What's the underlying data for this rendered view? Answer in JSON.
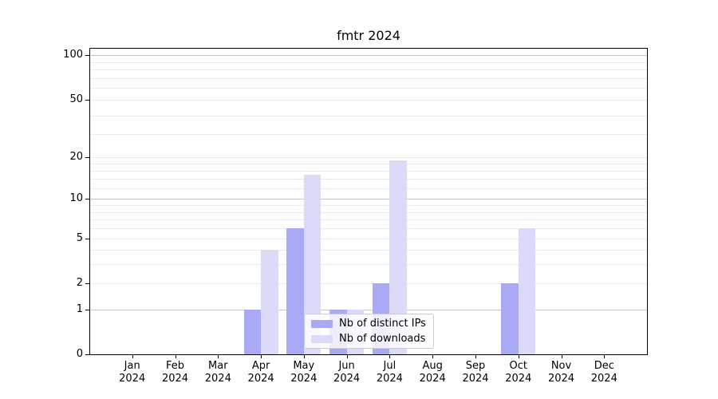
{
  "figure": {
    "background": "#ffffff"
  },
  "chart_data": {
    "type": "bar",
    "title": "fmtr 2024",
    "x_categories": [
      {
        "month": "Jan",
        "year": "2024"
      },
      {
        "month": "Feb",
        "year": "2024"
      },
      {
        "month": "Mar",
        "year": "2024"
      },
      {
        "month": "Apr",
        "year": "2024"
      },
      {
        "month": "May",
        "year": "2024"
      },
      {
        "month": "Jun",
        "year": "2024"
      },
      {
        "month": "Jul",
        "year": "2024"
      },
      {
        "month": "Aug",
        "year": "2024"
      },
      {
        "month": "Sep",
        "year": "2024"
      },
      {
        "month": "Oct",
        "year": "2024"
      },
      {
        "month": "Nov",
        "year": "2024"
      },
      {
        "month": "Dec",
        "year": "2024"
      }
    ],
    "series": [
      {
        "name": "Nb of distinct IPs",
        "color": "#a9a9f5",
        "values": [
          0,
          0,
          0,
          1,
          6,
          1,
          2,
          0,
          0,
          2,
          0,
          0
        ]
      },
      {
        "name": "Nb of downloads",
        "color": "#dbdbf9",
        "values": [
          0,
          0,
          0,
          4,
          15,
          1,
          19,
          0,
          0,
          6,
          0,
          0
        ]
      }
    ],
    "yscale": "log1p",
    "ylim": [
      0,
      110
    ],
    "yticks": [
      0,
      1,
      2,
      5,
      10,
      20,
      50,
      100
    ],
    "ytick_labels": [
      "0",
      "1",
      "2",
      "5",
      "10",
      "20",
      "50",
      "100"
    ],
    "major_gridlines": [
      1,
      10,
      100
    ],
    "minor_gridlines": [
      2,
      3,
      4,
      5,
      6,
      7,
      8,
      9,
      12,
      14,
      16,
      18,
      20,
      29,
      39,
      50,
      60,
      70,
      80,
      90
    ],
    "grid": true,
    "legend": {
      "location": "lower center",
      "items": [
        "Nb of distinct IPs",
        "Nb of downloads"
      ]
    }
  },
  "colors": {
    "axis": "#000000",
    "grid_major": "#c4c4c4",
    "grid_minor": "#eaeaea",
    "legend_border": "#cccccc",
    "bar_distinct_ips": "#a9a9f5",
    "bar_downloads": "#dbdbf9"
  }
}
